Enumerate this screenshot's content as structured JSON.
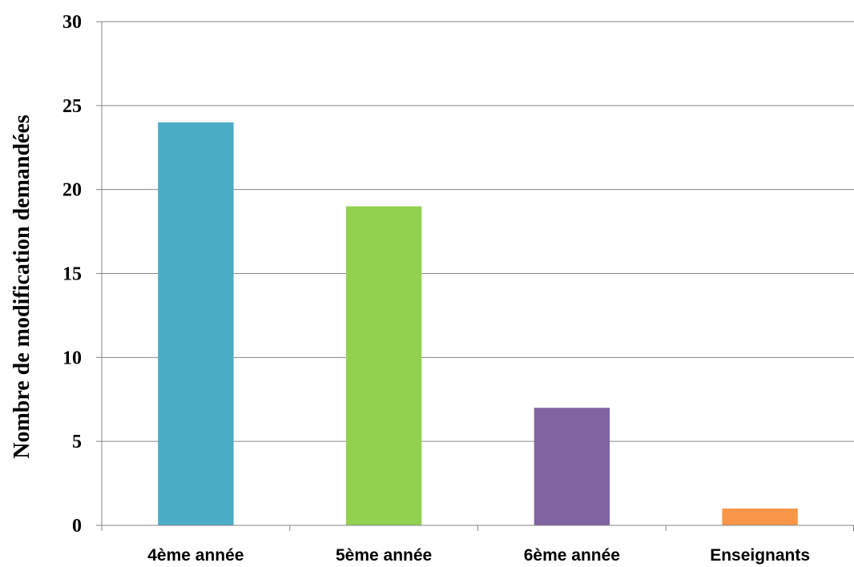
{
  "chart_data": {
    "type": "bar",
    "categories": [
      "4ème année",
      "5ème année",
      "6ème année",
      "Enseignants"
    ],
    "values": [
      24,
      19,
      7,
      1
    ],
    "colors": [
      "#4BACC6",
      "#92D050",
      "#8064A2",
      "#F79646"
    ],
    "title": "",
    "xlabel": "",
    "ylabel": "Nombre de modification demandées",
    "ylim": [
      0,
      30
    ],
    "yticks": [
      0,
      5,
      10,
      15,
      20,
      25,
      30
    ],
    "grid": true,
    "legend": "none"
  }
}
